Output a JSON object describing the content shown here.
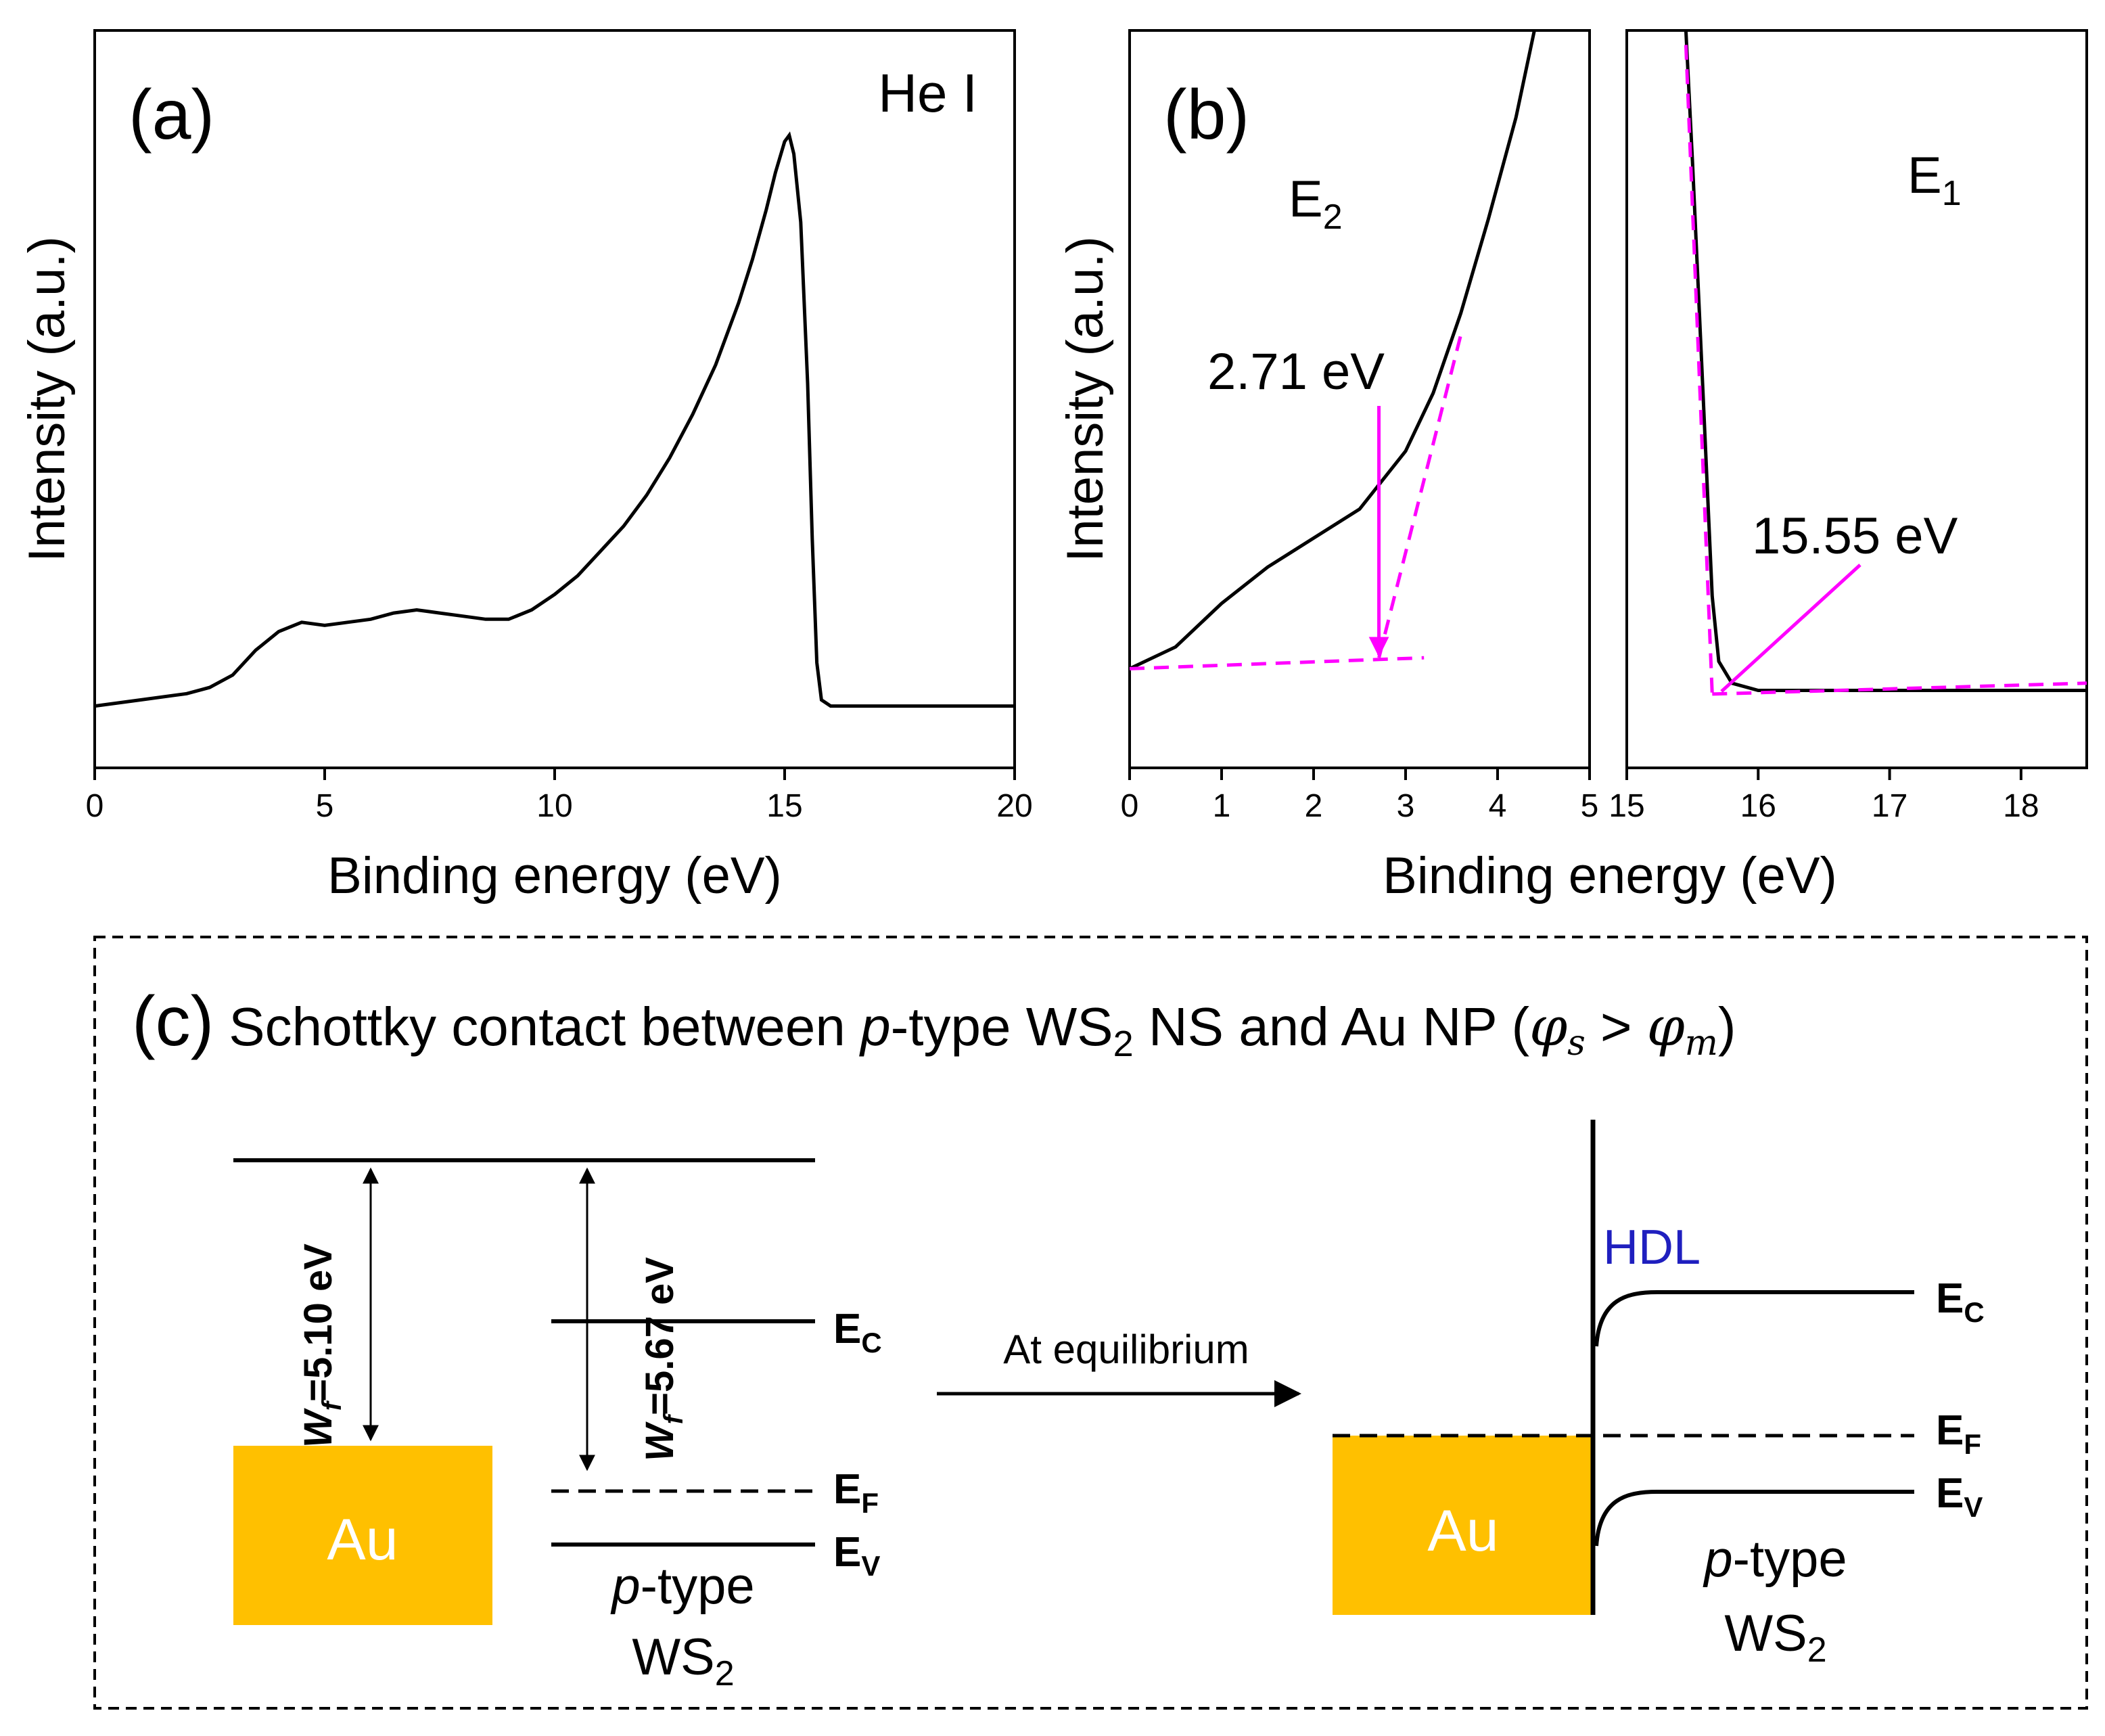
{
  "chart_data": [
    {
      "panel": "(a)",
      "type": "line",
      "title": "He I",
      "xlabel": "Binding energy (eV)",
      "ylabel": "Intensity (a.u.)",
      "xlim": [
        0,
        20
      ],
      "ylim": [
        0,
        1
      ],
      "xticks": [
        0,
        5,
        10,
        15,
        20
      ],
      "series": [
        {
          "name": "He I spectrum",
          "x": [
            0,
            1,
            2,
            2.5,
            3,
            3.5,
            4,
            4.5,
            5,
            5.5,
            6,
            6.5,
            7,
            7.5,
            8,
            8.5,
            9,
            9.5,
            10,
            10.5,
            11,
            11.5,
            12,
            12.5,
            13,
            13.5,
            14,
            14.3,
            14.6,
            14.8,
            15,
            15.1,
            15.2,
            15.35,
            15.5,
            15.6,
            15.7,
            15.8,
            16,
            17,
            18,
            20
          ],
          "y": [
            0.08,
            0.09,
            0.1,
            0.11,
            0.13,
            0.17,
            0.2,
            0.215,
            0.21,
            0.215,
            0.22,
            0.23,
            0.235,
            0.23,
            0.225,
            0.22,
            0.22,
            0.235,
            0.26,
            0.29,
            0.33,
            0.37,
            0.42,
            0.48,
            0.55,
            0.63,
            0.73,
            0.8,
            0.88,
            0.94,
            0.99,
            1.0,
            0.97,
            0.86,
            0.6,
            0.35,
            0.15,
            0.09,
            0.08,
            0.08,
            0.08,
            0.08
          ]
        }
      ]
    },
    {
      "panel": "(b) left",
      "type": "line",
      "title": "E2",
      "xlabel": "Binding energy (eV)",
      "ylabel": "Intensity (a.u.)",
      "xlim": [
        0,
        5
      ],
      "ylim": [
        0,
        1
      ],
      "xticks": [
        0,
        1,
        2,
        3,
        4,
        5
      ],
      "series": [
        {
          "name": "spectrum",
          "x": [
            0,
            0.5,
            1,
            1.5,
            2,
            2.5,
            3,
            3.3,
            3.6,
            3.9,
            4.2,
            4.4
          ],
          "y": [
            0.12,
            0.15,
            0.21,
            0.26,
            0.3,
            0.34,
            0.42,
            0.5,
            0.61,
            0.74,
            0.88,
            1.0
          ]
        },
        {
          "name": "baseline fit",
          "x": [
            0,
            3.2
          ],
          "y": [
            0.12,
            0.135
          ]
        },
        {
          "name": "edge fit",
          "x": [
            2.71,
            3.6
          ],
          "y": [
            0.135,
            0.58
          ]
        }
      ],
      "annotation": {
        "text": "2.71 eV",
        "x": 2.71
      }
    },
    {
      "panel": "(b) right",
      "type": "line",
      "title": "E1",
      "xlabel": "Binding energy (eV)",
      "xlim": [
        15,
        18.5
      ],
      "ylim": [
        0,
        1
      ],
      "xticks": [
        15,
        16,
        17,
        18
      ],
      "series": [
        {
          "name": "spectrum",
          "x": [
            15.45,
            15.5,
            15.55,
            15.6,
            15.65,
            15.7,
            15.8,
            16,
            17,
            18.5
          ],
          "y": [
            1.0,
            0.82,
            0.62,
            0.42,
            0.22,
            0.13,
            0.1,
            0.09,
            0.09,
            0.09
          ]
        },
        {
          "name": "edge fit",
          "x": [
            15.45,
            15.65
          ],
          "y": [
            0.98,
            0.085
          ]
        },
        {
          "name": "baseline fit",
          "x": [
            15.65,
            18.5
          ],
          "y": [
            0.085,
            0.1
          ]
        }
      ],
      "annotation": {
        "text": "15.55 eV",
        "x": 15.65
      }
    }
  ],
  "panel_b_letter": "(b)",
  "diagram": {
    "letter": "(c)",
    "title_pre": "Schottky contact between ",
    "title_p": "p",
    "title_mid": "-type WS",
    "title_sub": "2",
    "title_post": " NS and Au NP (",
    "phi1": "φ",
    "phi1_sub": "s",
    "gt": ">",
    "phi2": "φ",
    "phi2_sub": "m",
    "close_paren": ")",
    "au_label": "Au",
    "wf_au_pre": "W",
    "wf_au_sub": "f",
    "wf_au_val": "=5.10 eV",
    "wf_ws2_pre": "W",
    "wf_ws2_sub": "f",
    "wf_ws2_val": "=5.67 eV",
    "ec_main": "E",
    "ec_sub": "C",
    "ef_main": "E",
    "ef_sub": "F",
    "ev_main": "E",
    "ev_sub": "V",
    "ptype_p": "p",
    "ptype_rest": "-type",
    "ws2_main": "WS",
    "ws2_sub": "2",
    "arrow_label": "At equilibrium",
    "hdl": "HDL",
    "hdl_color": "#1f1fbf",
    "au_color": "#ffc000",
    "fit_color": "#ff00ff"
  }
}
